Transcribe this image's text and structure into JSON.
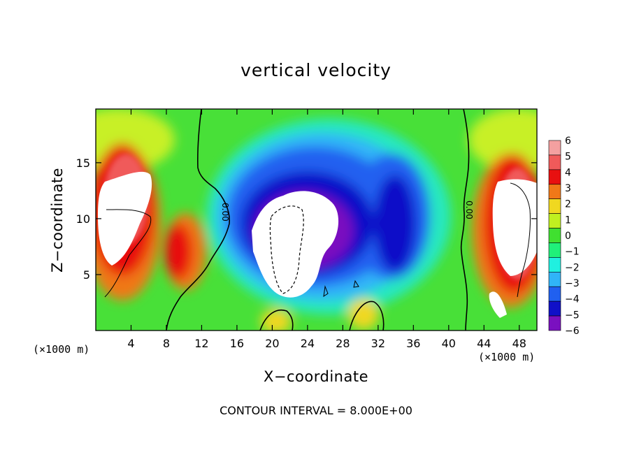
{
  "chart_data": {
    "type": "heatmap",
    "title": "vertical velocity",
    "xlabel": "X−coordinate",
    "ylabel": "Z−coordinate",
    "x_unit_left": "(×1000 m)",
    "x_unit_right": "(×1000 m)",
    "xlim": [
      0,
      50
    ],
    "ylim": [
      0,
      19.8
    ],
    "xticks": [
      4,
      8,
      12,
      16,
      20,
      24,
      28,
      32,
      36,
      40,
      44,
      48
    ],
    "xtick_labels": [
      "4",
      "8",
      "12",
      "16",
      "20",
      "24",
      "28",
      "32",
      "36",
      "40",
      "44",
      "48"
    ],
    "yticks": [
      5,
      10,
      15
    ],
    "ytick_labels": [
      "5",
      "10",
      "15"
    ],
    "colorbar": {
      "levels": [
        6,
        5,
        4,
        3,
        2,
        1,
        0,
        -1,
        -2,
        -3,
        -4,
        -5,
        -6
      ],
      "labels": [
        "6",
        "5",
        "4",
        "3",
        "2",
        "1",
        "0",
        "−1",
        "−2",
        "−3",
        "−4",
        "−5",
        "−6"
      ],
      "colors": [
        "#f4a0a0",
        "#f05a5a",
        "#e81010",
        "#f07818",
        "#f0d820",
        "#c0f020",
        "#40e030",
        "#20f07a",
        "#20f0e0",
        "#30b4f8",
        "#2060f0",
        "#1010c8",
        "#7a10c0"
      ]
    },
    "contour_labels": [
      "0.00",
      "0.00"
    ],
    "contour_interval_text": "CONTOUR INTERVAL = 8.000E+00",
    "grid": false
  }
}
